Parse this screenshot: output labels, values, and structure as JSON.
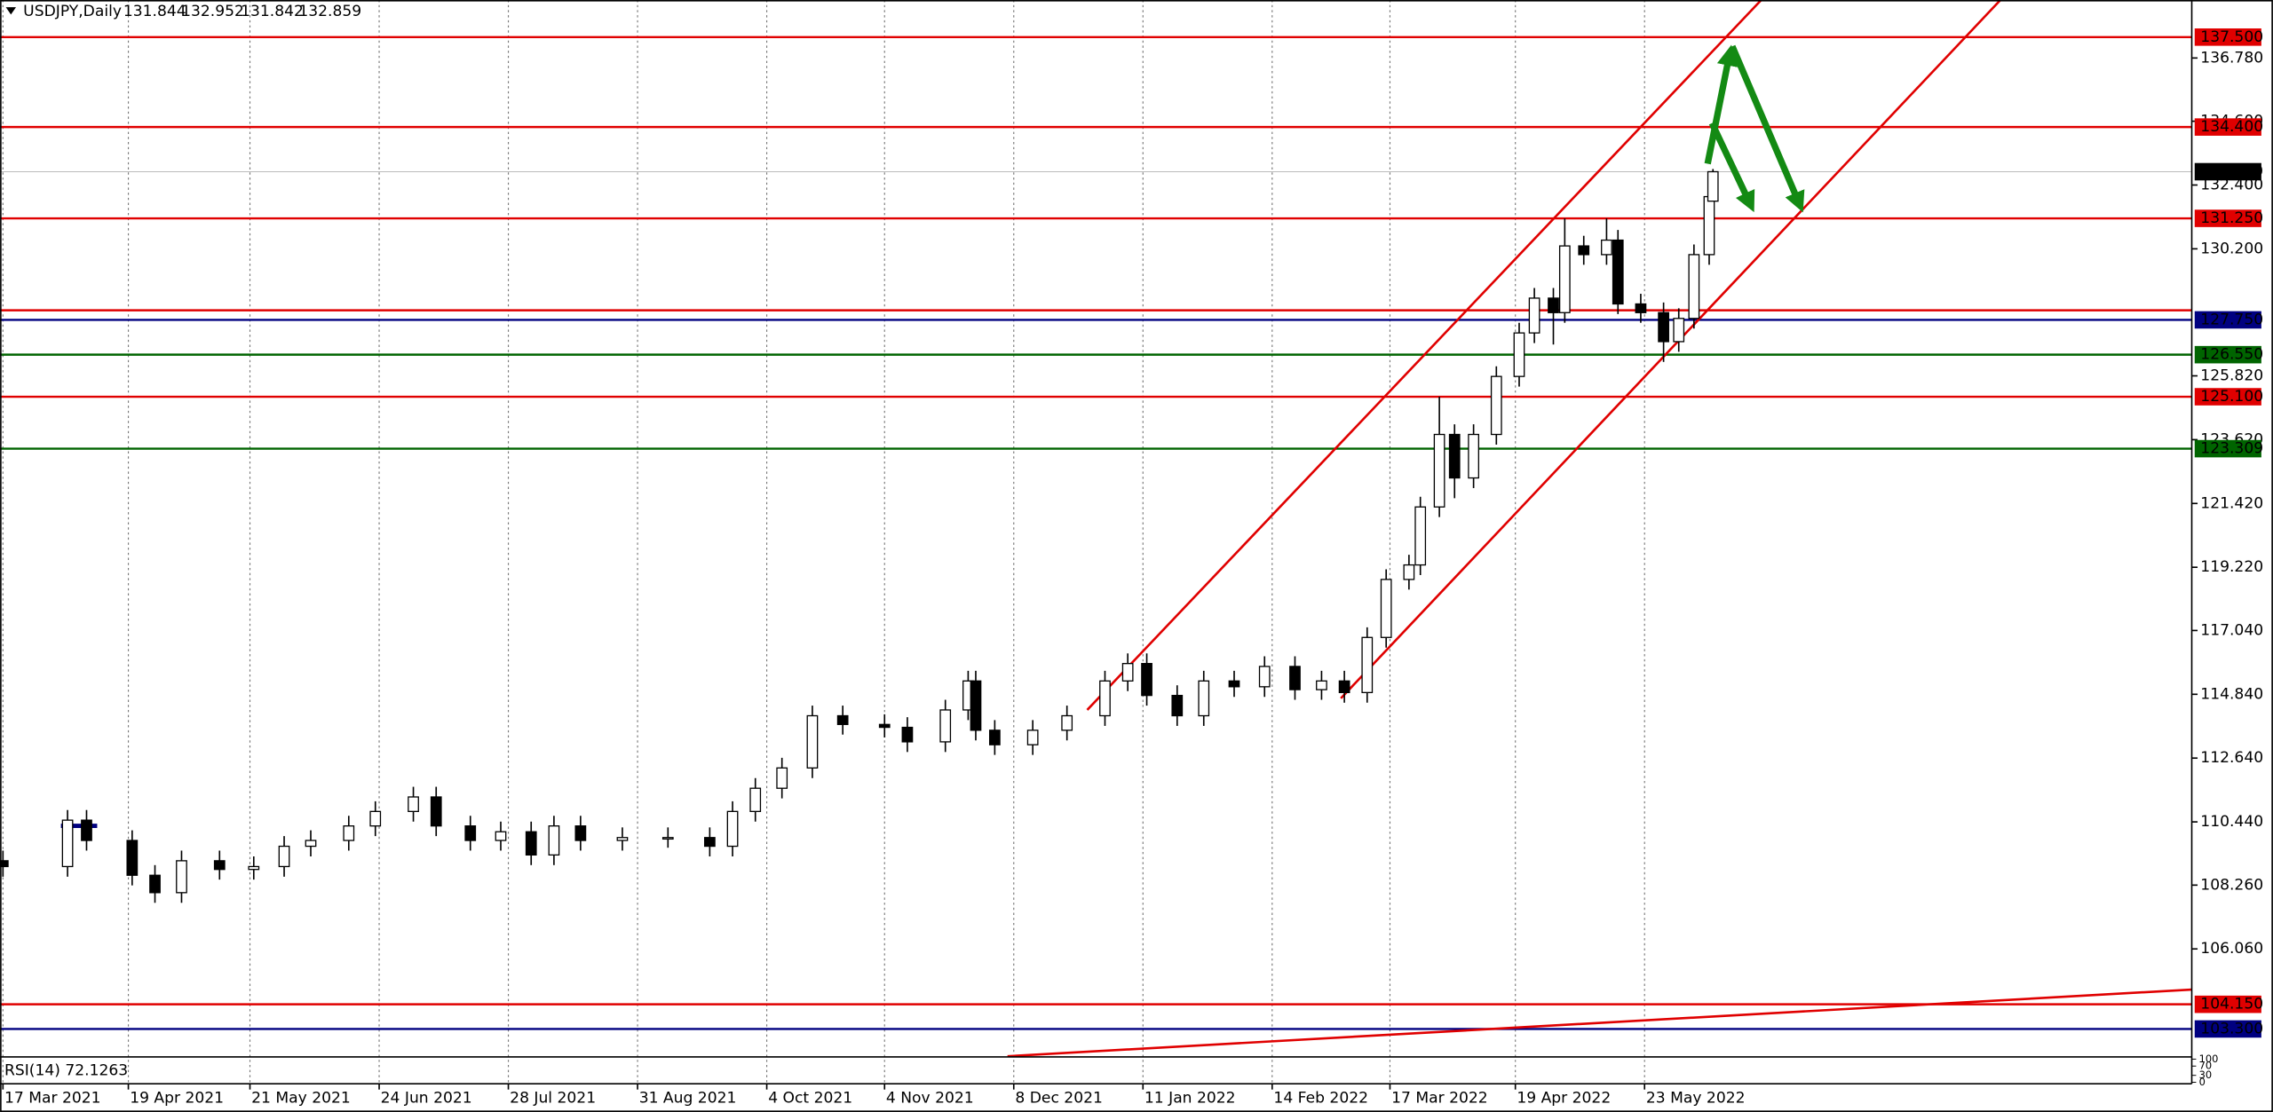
{
  "chart_data": {
    "type": "candlestick",
    "title": "USDJPY,Daily",
    "x": [
      "2021-03-17",
      "2021-04-03",
      "2021-04-08",
      "2021-04-20",
      "2021-04-26",
      "2021-05-03",
      "2021-05-13",
      "2021-05-22",
      "2021-05-30",
      "2021-06-06",
      "2021-06-16",
      "2021-06-23",
      "2021-07-03",
      "2021-07-09",
      "2021-07-18",
      "2021-07-26",
      "2021-08-03",
      "2021-08-09",
      "2021-08-16",
      "2021-08-27",
      "2021-09-08",
      "2021-09-19",
      "2021-09-25",
      "2021-10-01",
      "2021-10-08",
      "2021-10-16",
      "2021-10-24",
      "2021-11-04",
      "2021-11-10",
      "2021-11-20",
      "2021-11-26",
      "2021-11-28",
      "2021-12-03",
      "2021-12-13",
      "2021-12-22",
      "2022-01-01",
      "2022-01-07",
      "2022-01-12",
      "2022-01-20",
      "2022-01-27",
      "2022-02-04",
      "2022-02-12",
      "2022-02-20",
      "2022-02-27",
      "2022-03-05",
      "2022-03-11",
      "2022-03-16",
      "2022-03-22",
      "2022-03-25",
      "2022-03-30",
      "2022-04-03",
      "2022-04-08",
      "2022-04-14",
      "2022-04-20",
      "2022-04-24",
      "2022-04-29",
      "2022-05-02",
      "2022-05-07",
      "2022-05-13",
      "2022-05-16",
      "2022-05-22",
      "2022-05-28",
      "2022-06-01",
      "2022-06-05",
      "2022-06-09",
      "2022-06-10"
    ],
    "open": [
      109.1,
      108.9,
      110.5,
      109.8,
      108.6,
      108.0,
      109.1,
      108.8,
      108.9,
      109.6,
      109.8,
      110.3,
      110.8,
      111.3,
      110.3,
      109.8,
      110.1,
      109.3,
      110.3,
      109.8,
      109.9,
      109.9,
      109.6,
      110.8,
      111.6,
      112.3,
      114.1,
      113.8,
      113.7,
      113.2,
      114.3,
      115.3,
      113.6,
      113.1,
      113.6,
      114.1,
      115.3,
      115.9,
      114.8,
      114.1,
      115.3,
      115.1,
      115.8,
      115.0,
      115.3,
      114.9,
      116.8,
      118.8,
      119.3,
      121.3,
      123.8,
      122.3,
      123.8,
      125.8,
      127.3,
      128.5,
      128.0,
      130.3,
      130.0,
      130.5,
      128.3,
      128.0,
      127.0,
      127.8,
      130.0,
      131.844
    ],
    "high": [
      109.45,
      110.85,
      110.85,
      110.15,
      108.95,
      109.45,
      109.45,
      109.25,
      109.95,
      110.15,
      110.65,
      111.15,
      111.65,
      111.65,
      110.65,
      110.45,
      110.45,
      110.65,
      110.65,
      110.25,
      110.25,
      110.25,
      111.15,
      111.95,
      112.65,
      114.45,
      114.45,
      114.15,
      114.05,
      114.65,
      115.65,
      115.65,
      113.95,
      113.95,
      114.45,
      115.65,
      116.25,
      116.25,
      115.15,
      115.65,
      115.65,
      116.15,
      116.15,
      115.65,
      115.65,
      117.15,
      119.15,
      119.65,
      121.65,
      125.1,
      124.15,
      124.15,
      126.15,
      127.65,
      128.85,
      128.85,
      131.25,
      130.65,
      131.25,
      130.85,
      128.65,
      128.35,
      128.15,
      130.35,
      132.35,
      132.952
    ],
    "low": [
      108.55,
      108.55,
      109.45,
      108.25,
      107.65,
      107.65,
      108.45,
      108.45,
      108.55,
      109.25,
      109.45,
      109.95,
      110.45,
      109.95,
      109.45,
      109.45,
      108.95,
      108.95,
      109.45,
      109.45,
      109.55,
      109.25,
      109.25,
      110.45,
      111.25,
      111.95,
      113.45,
      113.35,
      112.85,
      112.85,
      113.95,
      113.25,
      112.75,
      112.75,
      113.25,
      113.75,
      114.95,
      114.45,
      113.75,
      113.75,
      114.75,
      114.75,
      114.65,
      114.65,
      114.55,
      114.55,
      116.45,
      118.45,
      118.95,
      120.95,
      121.6,
      121.95,
      123.45,
      125.45,
      126.95,
      126.9,
      127.65,
      129.65,
      129.65,
      127.95,
      127.65,
      126.3,
      126.65,
      127.45,
      129.65,
      131.842
    ],
    "close": [
      108.9,
      110.5,
      109.8,
      108.6,
      108.0,
      109.1,
      108.8,
      108.9,
      109.6,
      109.8,
      110.3,
      110.8,
      111.3,
      110.3,
      109.8,
      110.1,
      109.3,
      110.3,
      109.8,
      109.9,
      109.9,
      109.6,
      110.8,
      111.6,
      112.3,
      114.1,
      113.8,
      113.7,
      113.2,
      114.3,
      115.3,
      113.6,
      113.1,
      113.6,
      114.1,
      115.3,
      115.9,
      114.8,
      114.1,
      115.3,
      115.1,
      115.8,
      115.0,
      115.3,
      114.9,
      116.8,
      118.8,
      119.3,
      121.3,
      123.8,
      122.3,
      123.8,
      125.8,
      127.3,
      128.5,
      128.0,
      130.3,
      130.0,
      130.5,
      128.3,
      128.0,
      127.0,
      127.8,
      130.0,
      132.0,
      132.859
    ],
    "up_color": "#ffffff",
    "down_color": "#000000",
    "xlim": [
      "2021-03-17",
      "2022-10-14"
    ],
    "xticks": [
      {
        "value": "2021-03-17",
        "label": "17 Mar 2021"
      },
      {
        "value": "2021-04-19",
        "label": "19 Apr 2021"
      },
      {
        "value": "2021-05-21",
        "label": "21 May 2021"
      },
      {
        "value": "2021-06-24",
        "label": "24 Jun 2021"
      },
      {
        "value": "2021-07-28",
        "label": "28 Jul 2021"
      },
      {
        "value": "2021-08-31",
        "label": "31 Aug 2021"
      },
      {
        "value": "2021-10-04",
        "label": "4 Oct 2021"
      },
      {
        "value": "2021-11-04",
        "label": "4 Nov 2021"
      },
      {
        "value": "2021-12-08",
        "label": "8 Dec 2021"
      },
      {
        "value": "2022-01-11",
        "label": "11 Jan 2022"
      },
      {
        "value": "2022-02-14",
        "label": "14 Feb 2022"
      },
      {
        "value": "2022-03-17",
        "label": "17 Mar 2022"
      },
      {
        "value": "2022-04-19",
        "label": "19 Apr 2022"
      },
      {
        "value": "2022-05-23",
        "label": "23 May 2022"
      }
    ],
    "ylim": [
      102.41,
      138.78
    ],
    "yticks": [
      {
        "value": 136.78,
        "label": "136.780"
      },
      {
        "value": 134.6,
        "label": "134.600"
      },
      {
        "value": 132.4,
        "label": "132.400"
      },
      {
        "value": 130.2,
        "label": "130.200"
      },
      {
        "value": 125.82,
        "label": "125.820"
      },
      {
        "value": 123.62,
        "label": "123.620"
      },
      {
        "value": 121.42,
        "label": "121.420"
      },
      {
        "value": 119.22,
        "label": "119.220"
      },
      {
        "value": 117.04,
        "label": "117.040"
      },
      {
        "value": 114.84,
        "label": "114.840"
      },
      {
        "value": 112.64,
        "label": "112.640"
      },
      {
        "value": 110.44,
        "label": "110.440"
      },
      {
        "value": 108.26,
        "label": "108.260"
      },
      {
        "value": 106.06,
        "label": "106.060"
      }
    ],
    "grid": true,
    "levels": [
      {
        "value": 137.5,
        "label": "137.500",
        "color": "#e00000"
      },
      {
        "value": 134.4,
        "label": "134.400",
        "color": "#e00000"
      },
      {
        "value": 131.25,
        "label": "131.250",
        "color": "#e00000"
      },
      {
        "value": 128.08,
        "color": "#e00000"
      },
      {
        "value": 127.75,
        "label": "127.750",
        "color": "#000080"
      },
      {
        "value": 126.55,
        "label": "126.550",
        "color": "#006400"
      },
      {
        "value": 125.1,
        "label": "125.100",
        "color": "#e00000"
      },
      {
        "value": 123.309,
        "label": "123.309",
        "color": "#006400"
      },
      {
        "value": 104.15,
        "label": "104.150",
        "color": "#e00000"
      },
      {
        "value": 103.3,
        "label": "103.300",
        "color": "#000080"
      }
    ],
    "rsi": {
      "title": "RSI(14) 72.1263",
      "ylim": [
        0,
        100
      ],
      "yticks": [
        100,
        70,
        30,
        0
      ]
    }
  }
}
